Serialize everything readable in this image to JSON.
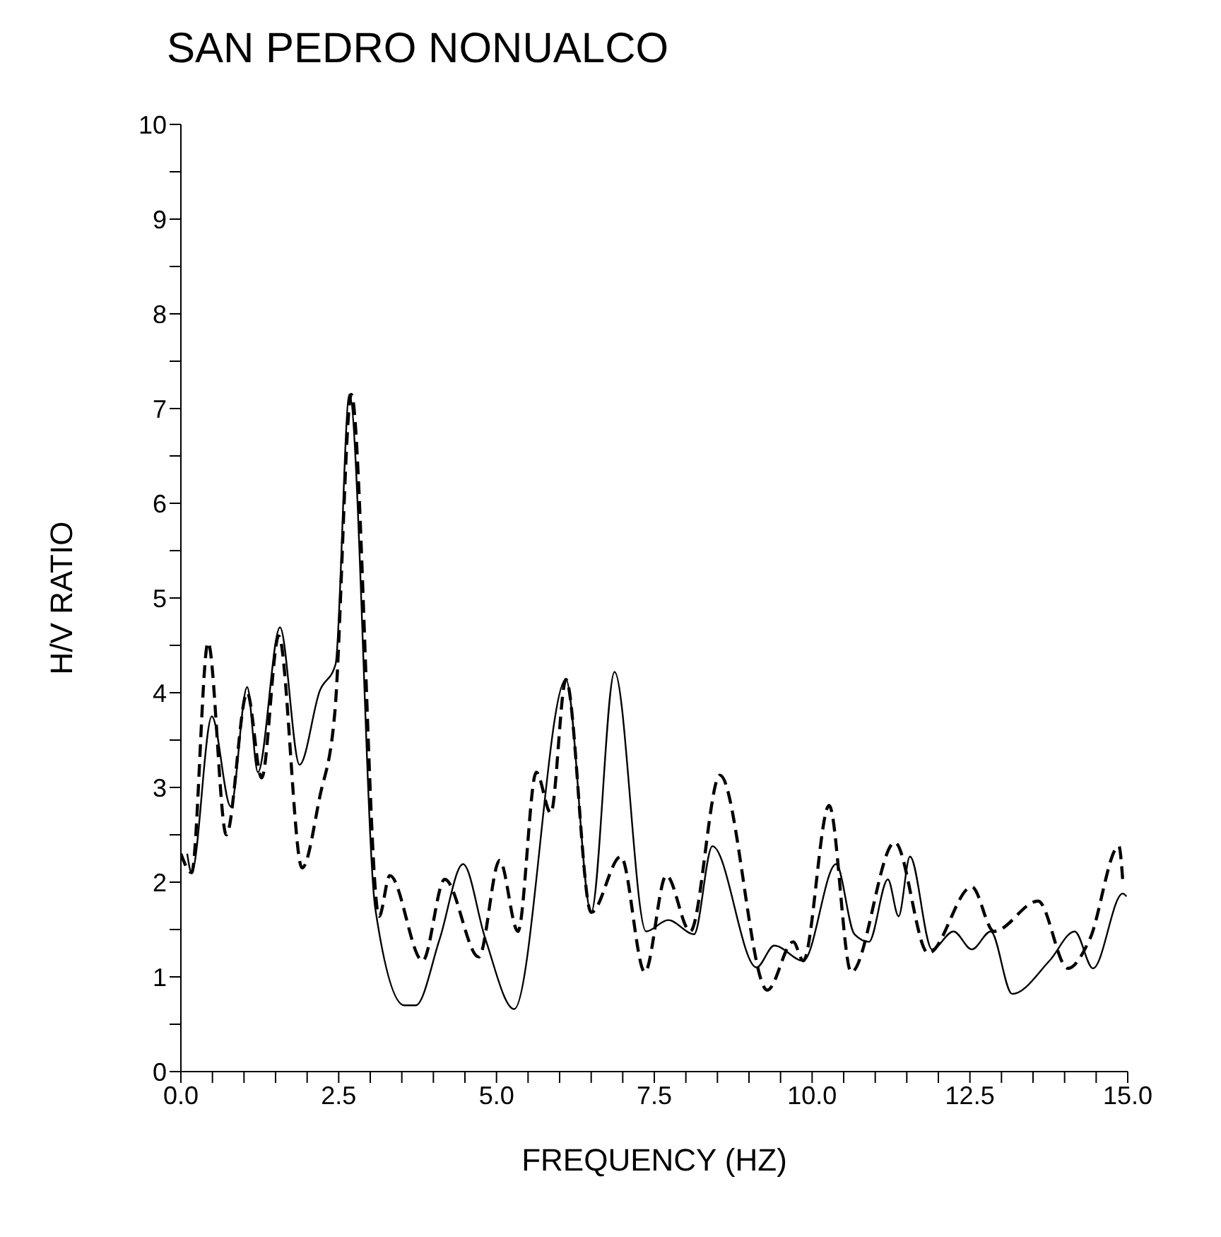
{
  "chart_data": {
    "type": "line",
    "title": "SAN PEDRO NONUALCO",
    "xlabel": "FREQUENCY (HZ)",
    "ylabel": "H/V RATIO",
    "xlim": [
      0,
      15
    ],
    "ylim": [
      0,
      10
    ],
    "xticks": [
      {
        "value": 0,
        "label": "0.0"
      },
      {
        "value": 0.5,
        "label": null
      },
      {
        "value": 1,
        "label": null
      },
      {
        "value": 1.5,
        "label": null
      },
      {
        "value": 2,
        "label": null
      },
      {
        "value": 2.5,
        "label": "2.5"
      },
      {
        "value": 3,
        "label": null
      },
      {
        "value": 3.5,
        "label": null
      },
      {
        "value": 4,
        "label": null
      },
      {
        "value": 4.5,
        "label": null
      },
      {
        "value": 5,
        "label": "5.0"
      },
      {
        "value": 5.5,
        "label": null
      },
      {
        "value": 6,
        "label": null
      },
      {
        "value": 6.5,
        "label": null
      },
      {
        "value": 7,
        "label": null
      },
      {
        "value": 7.5,
        "label": "7.5"
      },
      {
        "value": 8,
        "label": null
      },
      {
        "value": 8.5,
        "label": null
      },
      {
        "value": 9,
        "label": null
      },
      {
        "value": 9.5,
        "label": null
      },
      {
        "value": 10,
        "label": "10.0"
      },
      {
        "value": 10.5,
        "label": null
      },
      {
        "value": 11,
        "label": null
      },
      {
        "value": 11.5,
        "label": null
      },
      {
        "value": 12,
        "label": null
      },
      {
        "value": 12.5,
        "label": "12.5"
      },
      {
        "value": 13,
        "label": null
      },
      {
        "value": 13.5,
        "label": null
      },
      {
        "value": 14,
        "label": null
      },
      {
        "value": 14.5,
        "label": null
      },
      {
        "value": 15,
        "label": "15.0"
      }
    ],
    "yticks": [
      0,
      {
        "value": 0.5,
        "label": null
      },
      1,
      {
        "value": 1.5,
        "label": null
      },
      2,
      {
        "value": 2.5,
        "label": null
      },
      3,
      {
        "value": 3.5,
        "label": null
      },
      4,
      {
        "value": 4.5,
        "label": null
      },
      5,
      {
        "value": 5.5,
        "label": null
      },
      6,
      {
        "value": 6.5,
        "label": null
      },
      7,
      {
        "value": 7.5,
        "label": null
      },
      8,
      {
        "value": 8.5,
        "label": null
      },
      9,
      {
        "value": 9.5,
        "label": null
      },
      10
    ],
    "marker": "none",
    "series": [
      {
        "color": "#000000",
        "line_style": "solid",
        "x": [
          0.1,
          0.17,
          0.49,
          0.79,
          1.05,
          1.22,
          1.57,
          1.88,
          2.2,
          2.45,
          2.67,
          3.08,
          3.54,
          3.72,
          4.1,
          4.47,
          4.82,
          5.28,
          6.1,
          6.5,
          6.87,
          7.37,
          7.72,
          8.13,
          8.42,
          9.12,
          9.4,
          9.86,
          10.38,
          10.67,
          10.9,
          11.2,
          11.37,
          11.55,
          11.9,
          12.24,
          12.53,
          12.83,
          13.17,
          13.76,
          14.16,
          14.45,
          14.92,
          14.98
        ],
        "values": [
          2.3,
          2.1,
          3.75,
          2.8,
          4.06,
          3.16,
          4.69,
          3.24,
          4.02,
          4.3,
          7.15,
          1.72,
          0.7,
          0.7,
          1.4,
          2.19,
          1.41,
          0.66,
          4.14,
          1.68,
          4.22,
          1.48,
          1.6,
          1.45,
          2.38,
          1.1,
          1.33,
          1.17,
          2.19,
          1.45,
          1.37,
          2.03,
          1.64,
          2.27,
          1.29,
          1.48,
          1.29,
          1.48,
          0.82,
          1.17,
          1.48,
          1.09,
          1.88,
          1.85
        ]
      },
      {
        "color": "#000000",
        "line_style": "dashed",
        "x": [
          0,
          0.17,
          0.43,
          0.72,
          1.05,
          1.28,
          1.55,
          1.92,
          2.2,
          2.44,
          2.7,
          3.14,
          3.31,
          3.83,
          4.18,
          4.72,
          5.05,
          5.34,
          5.63,
          5.86,
          6.1,
          6.5,
          6.97,
          7.35,
          7.69,
          8.07,
          8.54,
          9.29,
          9.7,
          9.86,
          10.27,
          10.62,
          11.31,
          11.84,
          12.53,
          12.88,
          13.58,
          14.05,
          14.4,
          14.86,
          14.92
        ],
        "values": [
          2.3,
          2.1,
          4.53,
          2.5,
          4.0,
          3.1,
          4.6,
          2.15,
          2.9,
          3.8,
          7.15,
          1.64,
          2.07,
          1.17,
          2.03,
          1.21,
          2.23,
          1.48,
          3.16,
          2.73,
          4.14,
          1.68,
          2.27,
          1.05,
          2.07,
          1.48,
          3.13,
          0.86,
          1.37,
          1.17,
          2.81,
          1.05,
          2.42,
          1.25,
          1.95,
          1.48,
          1.8,
          1.09,
          1.4,
          2.38,
          2.03
        ]
      }
    ]
  }
}
